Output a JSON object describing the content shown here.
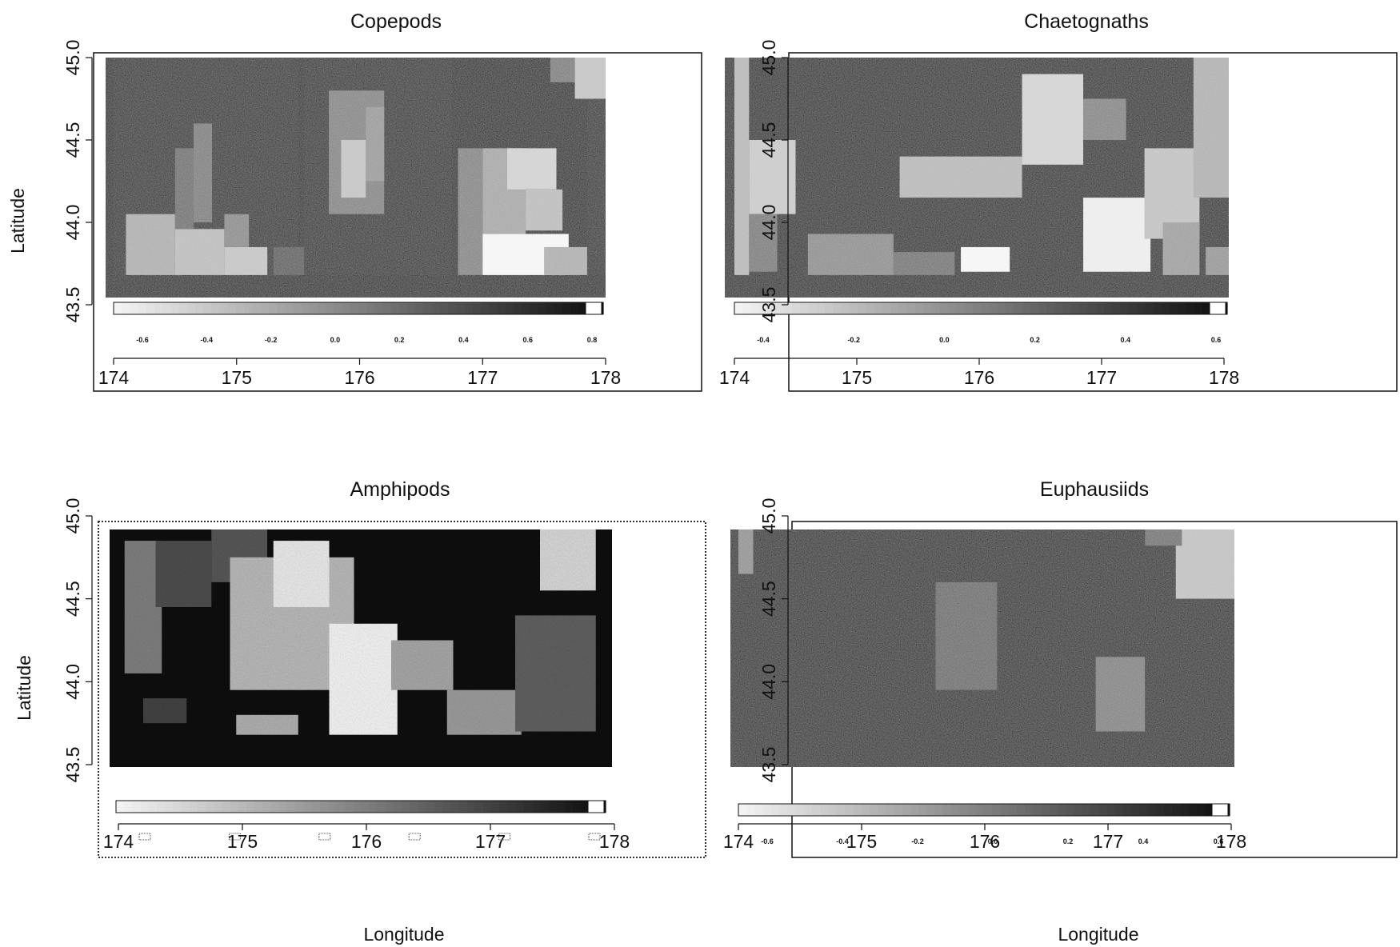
{
  "chart_data": [
    {
      "type": "heatmap",
      "title": "Copepods",
      "xlabel": "",
      "ylabel": "Latitude",
      "xlim": [
        173.9,
        178.1
      ],
      "ylim": [
        43.4,
        45.05
      ],
      "x_ticks": [
        "174",
        "175",
        "176",
        "177",
        "178"
      ],
      "y_ticks": [
        "43.5",
        "44.0",
        "44.5",
        "45.0"
      ],
      "colorbar_ticks": [
        "-0.6",
        "-0.4",
        "-0.2",
        "0.0",
        "0.2",
        "0.4",
        "0.6",
        "0.8"
      ],
      "colorbar_range": [
        -0.7,
        0.9
      ],
      "field": [
        {
          "x": [
            174.0,
            175.5
          ],
          "y": [
            43.68,
            45.02
          ],
          "v": 0.78
        },
        {
          "x": [
            175.3,
            175.55
          ],
          "y": [
            43.68,
            43.85
          ],
          "v": 0.4
        },
        {
          "x": [
            175.55,
            176.75
          ],
          "y": [
            43.68,
            45.02
          ],
          "v": 0.78
        },
        {
          "x": [
            177.85,
            178.05
          ],
          "y": [
            43.68,
            45.02
          ],
          "v": 0.78
        },
        {
          "x": [
            174.1,
            174.5
          ],
          "y": [
            43.68,
            44.05
          ],
          "v": -0.2
        },
        {
          "x": [
            174.5,
            174.9
          ],
          "y": [
            43.68,
            43.96
          ],
          "v": -0.3
        },
        {
          "x": [
            174.5,
            174.65
          ],
          "y": [
            43.96,
            44.45
          ],
          "v": 0.25
        },
        {
          "x": [
            174.65,
            174.8
          ],
          "y": [
            44.0,
            44.6
          ],
          "v": 0.15
        },
        {
          "x": [
            174.9,
            175.25
          ],
          "y": [
            43.68,
            43.85
          ],
          "v": -0.35
        },
        {
          "x": [
            174.9,
            175.1
          ],
          "y": [
            43.85,
            44.05
          ],
          "v": 0.05
        },
        {
          "x": [
            175.75,
            176.2
          ],
          "y": [
            44.05,
            44.8
          ],
          "v": 0.1
        },
        {
          "x": [
            175.85,
            176.05
          ],
          "y": [
            44.15,
            44.5
          ],
          "v": -0.35
        },
        {
          "x": [
            176.05,
            176.2
          ],
          "y": [
            44.25,
            44.7
          ],
          "v": -0.05
        },
        {
          "x": [
            176.8,
            177.0
          ],
          "y": [
            43.68,
            44.45
          ],
          "v": 0.1
        },
        {
          "x": [
            177.0,
            177.7
          ],
          "y": [
            43.68,
            43.93
          ],
          "v": -0.7
        },
        {
          "x": [
            177.0,
            177.35
          ],
          "y": [
            43.93,
            44.45
          ],
          "v": -0.15
        },
        {
          "x": [
            177.2,
            177.6
          ],
          "y": [
            44.2,
            44.45
          ],
          "v": -0.45
        },
        {
          "x": [
            177.35,
            177.65
          ],
          "y": [
            43.95,
            44.2
          ],
          "v": -0.3
        },
        {
          "x": [
            177.5,
            177.85
          ],
          "y": [
            43.68,
            43.85
          ],
          "v": -0.2
        },
        {
          "x": [
            177.75,
            178.05
          ],
          "y": [
            44.75,
            45.02
          ],
          "v": -0.35
        },
        {
          "x": [
            177.55,
            177.75
          ],
          "y": [
            44.85,
            45.02
          ],
          "v": 0.15
        }
      ]
    },
    {
      "type": "heatmap",
      "title": "Chaetognaths",
      "xlabel": "",
      "ylabel": "",
      "xlim": [
        173.9,
        178.1
      ],
      "ylim": [
        43.4,
        45.05
      ],
      "x_ticks": [
        "174",
        "175",
        "176",
        "177",
        "178"
      ],
      "y_ticks": [
        "43.5",
        "44.0",
        "44.5",
        "45.0"
      ],
      "colorbar_ticks": [
        "-0.4",
        "-0.2",
        "0.0",
        "0.2",
        "0.4",
        "0.6"
      ],
      "colorbar_range": [
        -0.55,
        0.75
      ],
      "field": [
        {
          "x": [
            174.0,
            174.12
          ],
          "y": [
            43.68,
            45.0
          ],
          "v": -0.2
        },
        {
          "x": [
            174.12,
            174.5
          ],
          "y": [
            44.05,
            44.5
          ],
          "v": -0.3
        },
        {
          "x": [
            174.12,
            174.35
          ],
          "y": [
            43.7,
            44.05
          ],
          "v": 0.15
        },
        {
          "x": [
            174.6,
            175.3
          ],
          "y": [
            43.68,
            43.93
          ],
          "v": 0.05
        },
        {
          "x": [
            175.3,
            175.8
          ],
          "y": [
            43.68,
            43.82
          ],
          "v": 0.2
        },
        {
          "x": [
            175.35,
            176.35
          ],
          "y": [
            44.15,
            44.4
          ],
          "v": -0.2
        },
        {
          "x": [
            176.35,
            176.85
          ],
          "y": [
            44.35,
            44.9
          ],
          "v": -0.35
        },
        {
          "x": [
            176.85,
            177.2
          ],
          "y": [
            44.5,
            44.75
          ],
          "v": 0.1
        },
        {
          "x": [
            175.85,
            176.25
          ],
          "y": [
            43.7,
            43.85
          ],
          "v": -0.55
        },
        {
          "x": [
            176.85,
            177.4
          ],
          "y": [
            43.7,
            44.15
          ],
          "v": -0.5
        },
        {
          "x": [
            177.35,
            177.8
          ],
          "y": [
            43.9,
            44.45
          ],
          "v": -0.25
        },
        {
          "x": [
            177.5,
            177.8
          ],
          "y": [
            43.68,
            44.0
          ],
          "v": -0.05
        },
        {
          "x": [
            177.75,
            178.05
          ],
          "y": [
            44.15,
            45.0
          ],
          "v": -0.15
        },
        {
          "x": [
            177.85,
            178.05
          ],
          "y": [
            43.68,
            43.85
          ],
          "v": 0.0
        }
      ]
    },
    {
      "type": "heatmap",
      "title": "Amphipods",
      "xlabel": "Longitude",
      "ylabel": "Latitude",
      "xlim": [
        173.9,
        178.1
      ],
      "ylim": [
        43.4,
        45.05
      ],
      "x_ticks": [
        "174",
        "175",
        "176",
        "177",
        "178"
      ],
      "y_ticks": [
        "43.5",
        "44.0",
        "44.5",
        "45.0"
      ],
      "colorbar_ticks": [
        "",
        "",
        "",
        "",
        "",
        ""
      ],
      "colorbar_range": [
        -0.6,
        0.6
      ],
      "field": [
        {
          "x": [
            174.05,
            174.35
          ],
          "y": [
            44.05,
            44.85
          ],
          "v": 0.0
        },
        {
          "x": [
            174.3,
            174.75
          ],
          "y": [
            44.45,
            44.85
          ],
          "v": 0.25
        },
        {
          "x": [
            174.75,
            175.2
          ],
          "y": [
            44.6,
            44.95
          ],
          "v": 0.2
        },
        {
          "x": [
            174.9,
            175.9
          ],
          "y": [
            43.95,
            44.75
          ],
          "v": -0.3
        },
        {
          "x": [
            175.25,
            175.7
          ],
          "y": [
            44.45,
            44.85
          ],
          "v": -0.55
        },
        {
          "x": [
            175.7,
            176.25
          ],
          "y": [
            43.68,
            44.35
          ],
          "v": -0.6
        },
        {
          "x": [
            176.2,
            176.7
          ],
          "y": [
            43.95,
            44.25
          ],
          "v": -0.2
        },
        {
          "x": [
            174.95,
            175.45
          ],
          "y": [
            43.68,
            43.8
          ],
          "v": -0.25
        },
        {
          "x": [
            176.65,
            177.25
          ],
          "y": [
            43.68,
            43.95
          ],
          "v": -0.15
        },
        {
          "x": [
            177.4,
            177.85
          ],
          "y": [
            44.55,
            44.95
          ],
          "v": -0.45
        },
        {
          "x": [
            177.2,
            177.85
          ],
          "y": [
            43.7,
            44.4
          ],
          "v": 0.15
        },
        {
          "x": [
            174.2,
            174.55
          ],
          "y": [
            43.75,
            43.9
          ],
          "v": 0.3
        }
      ]
    },
    {
      "type": "heatmap",
      "title": "Euphausiids",
      "xlabel": "Longitude",
      "ylabel": "",
      "xlim": [
        173.9,
        178.1
      ],
      "ylim": [
        43.4,
        45.05
      ],
      "x_ticks": [
        "174",
        "175",
        "176",
        "177",
        "178"
      ],
      "y_ticks": [
        "43.5",
        "44.0",
        "44.5",
        "45.0"
      ],
      "colorbar_ticks": [
        "-0.6",
        "-0.4",
        "-0.2",
        "0.0",
        "0.2",
        "0.4",
        "0.6"
      ],
      "colorbar_range": [
        -0.72,
        0.68
      ],
      "field": [
        {
          "x": [
            174.0,
            174.12
          ],
          "y": [
            44.65,
            45.0
          ],
          "v": -0.1
        },
        {
          "x": [
            175.6,
            176.1
          ],
          "y": [
            43.95,
            44.6
          ],
          "v": 0.15
        },
        {
          "x": [
            176.9,
            177.3
          ],
          "y": [
            43.7,
            44.15
          ],
          "v": 0.0
        },
        {
          "x": [
            177.55,
            178.05
          ],
          "y": [
            44.5,
            45.0
          ],
          "v": -0.4
        },
        {
          "x": [
            177.3,
            177.6
          ],
          "y": [
            44.82,
            45.0
          ],
          "v": 0.1
        }
      ]
    }
  ]
}
